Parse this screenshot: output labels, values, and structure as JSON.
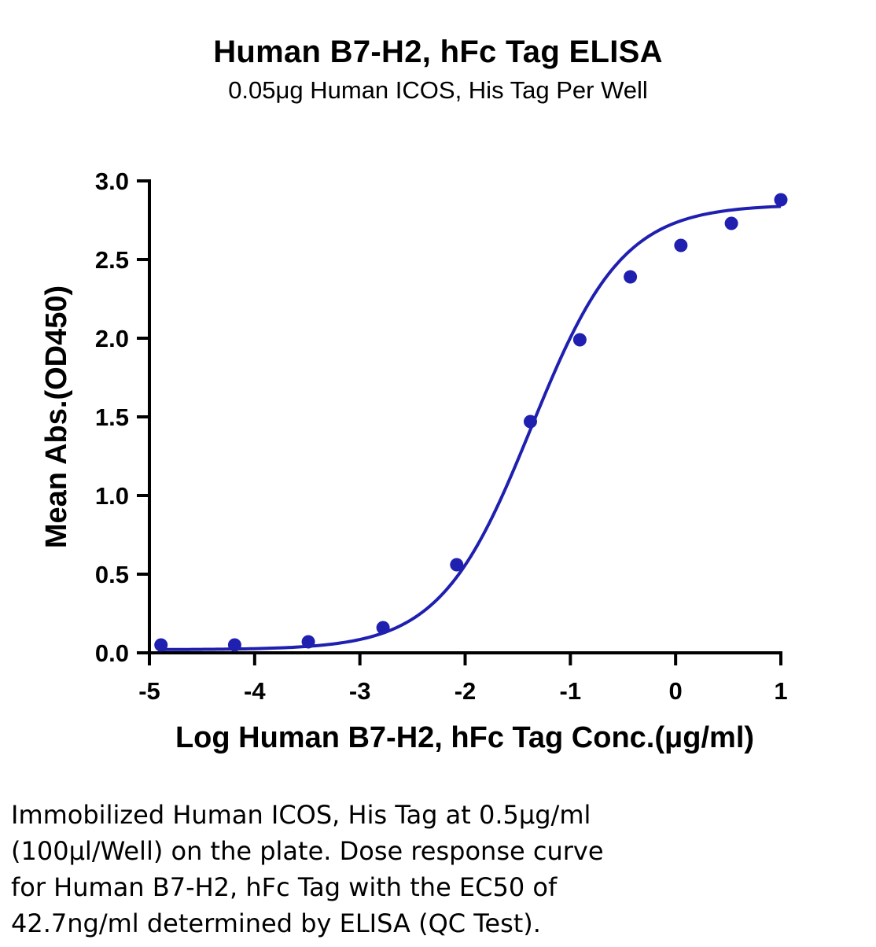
{
  "chart_data": {
    "type": "scatter",
    "title": "Human B7-H2, hFc Tag ELISA",
    "subtitle": "0.05μg Human ICOS, His Tag Per Well",
    "xlabel": "Log Human B7-H2, hFc Tag Conc.(μg/ml)",
    "ylabel": "Mean Abs.(OD450)",
    "xlim": [
      -5,
      1
    ],
    "ylim": [
      0,
      3
    ],
    "xticks": [
      "-5",
      "-4",
      "-3",
      "-2",
      "-1",
      "0",
      "1"
    ],
    "yticks": [
      "0.0",
      "0.5",
      "1.0",
      "1.5",
      "2.0",
      "2.5",
      "3.0"
    ],
    "grid": false,
    "series": [
      {
        "color": "#1f1fb0",
        "points": [
          {
            "x": -4.89,
            "y": 0.05
          },
          {
            "x": -4.19,
            "y": 0.05
          },
          {
            "x": -3.49,
            "y": 0.07
          },
          {
            "x": -2.78,
            "y": 0.16
          },
          {
            "x": -2.08,
            "y": 0.56
          },
          {
            "x": -1.38,
            "y": 1.47
          },
          {
            "x": -0.91,
            "y": 1.99
          },
          {
            "x": -0.43,
            "y": 2.39
          },
          {
            "x": 0.05,
            "y": 2.59
          },
          {
            "x": 0.53,
            "y": 2.73
          },
          {
            "x": 1.0,
            "y": 2.88
          }
        ],
        "fit": {
          "model": "4PL",
          "bottom": 0.02,
          "top": 2.85,
          "logEC50": -1.37,
          "hill": 1.0,
          "x_range": [
            -4.89,
            1.0
          ]
        }
      }
    ]
  },
  "caption": [
    "Immobilized Human ICOS, His Tag at 0.5μg/ml",
    "(100μl/Well) on the plate. Dose response curve",
    "for Human B7-H2, hFc Tag with the EC50 of",
    "42.7ng/ml determined by ELISA (QC Test)."
  ]
}
